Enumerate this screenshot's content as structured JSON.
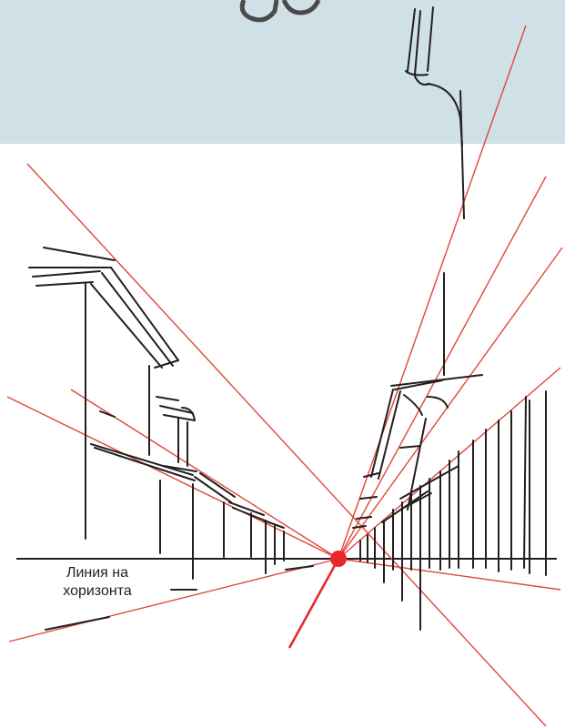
{
  "diagram": {
    "horizon_label": [
      "Линия на",
      "хоризонта"
    ],
    "colors": {
      "sky_band": "#cfe0e6",
      "pencil_line": "#231f20",
      "perspective_line": "#e0473a",
      "vanishing_point": "#e8282b",
      "arrow": "#e8282b"
    },
    "elements": [
      "horizon-line",
      "vanishing-point",
      "perspective-lines",
      "left-buildings",
      "right-buildings",
      "street-lamp",
      "pointer-arrow"
    ]
  }
}
